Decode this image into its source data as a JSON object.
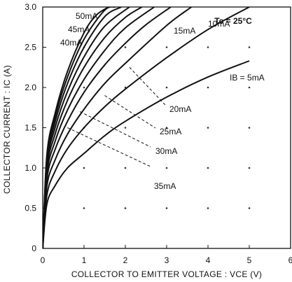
{
  "chart_data": {
    "type": "line",
    "xlabel": "COLLECTOR TO EMITTER VOLTAGE : VCE (V)",
    "ylabel": "COLLECTOR CURRENT : IC (A)",
    "xlim": [
      0,
      6
    ],
    "ylim": [
      0,
      3.0
    ],
    "xticks": [
      "0",
      "1",
      "2",
      "3",
      "4",
      "5",
      "6"
    ],
    "yticks": [
      "0",
      "0.5",
      "1.0",
      "1.5",
      "2.0",
      "2.5",
      "3.0"
    ],
    "annotation": "Tc = 25°C",
    "series": [
      {
        "name": "IB = 5mA",
        "x": [
          0,
          0.1,
          0.3,
          0.6,
          1.0,
          1.5,
          2.0,
          3.0,
          4.0,
          5.0
        ],
        "y": [
          0,
          0.55,
          0.78,
          1.0,
          1.18,
          1.4,
          1.58,
          1.88,
          2.13,
          2.33
        ]
      },
      {
        "name": "10mA",
        "x": [
          0,
          0.1,
          0.3,
          0.6,
          1.0,
          1.5,
          2.0,
          3.0,
          4.0,
          5.0
        ],
        "y": [
          0,
          0.66,
          0.96,
          1.24,
          1.5,
          1.76,
          1.98,
          2.37,
          2.72,
          3.0
        ]
      },
      {
        "name": "15mA",
        "x": [
          0,
          0.1,
          0.3,
          0.6,
          1.0,
          1.5,
          2.0,
          3.0,
          3.6
        ],
        "y": [
          0,
          0.77,
          1.1,
          1.42,
          1.73,
          2.05,
          2.3,
          2.77,
          3.0
        ]
      },
      {
        "name": "20mA",
        "x": [
          0,
          0.1,
          0.3,
          0.6,
          1.0,
          1.5,
          2.0,
          2.5,
          3.1
        ],
        "y": [
          0,
          0.86,
          1.23,
          1.58,
          1.94,
          2.28,
          2.55,
          2.78,
          3.0
        ]
      },
      {
        "name": "25mA",
        "x": [
          0,
          0.1,
          0.3,
          0.6,
          1.0,
          1.5,
          2.0,
          2.7
        ],
        "y": [
          0,
          0.93,
          1.33,
          1.72,
          2.1,
          2.46,
          2.74,
          3.0
        ]
      },
      {
        "name": "30mA",
        "x": [
          0,
          0.1,
          0.3,
          0.6,
          1.0,
          1.5,
          2.0,
          2.4
        ],
        "y": [
          0,
          0.99,
          1.42,
          1.84,
          2.25,
          2.62,
          2.87,
          3.0
        ]
      },
      {
        "name": "35mA",
        "x": [
          0,
          0.1,
          0.3,
          0.6,
          1.0,
          1.5,
          2.1
        ],
        "y": [
          0,
          1.04,
          1.5,
          1.95,
          2.38,
          2.76,
          3.0
        ]
      },
      {
        "name": "40mA",
        "x": [
          0,
          0.1,
          0.3,
          0.6,
          1.0,
          1.5,
          1.9
        ],
        "y": [
          0,
          1.08,
          1.57,
          2.05,
          2.5,
          2.88,
          3.0
        ]
      },
      {
        "name": "45mA",
        "x": [
          0,
          0.1,
          0.3,
          0.6,
          1.0,
          1.5,
          1.75
        ],
        "y": [
          0,
          1.12,
          1.63,
          2.13,
          2.6,
          2.96,
          3.0
        ]
      },
      {
        "name": "50mA",
        "x": [
          0,
          0.1,
          0.3,
          0.6,
          1.0,
          1.3,
          1.6
        ],
        "y": [
          0,
          1.16,
          1.68,
          2.2,
          2.68,
          2.9,
          3.0
        ]
      }
    ],
    "curve_labels": {
      "5mA": "IB = 5mA",
      "10mA": "10mA",
      "15mA": "15mA",
      "20mA": "20mA",
      "25mA": "25mA",
      "30mA": "30mA",
      "35mA": "35mA",
      "40mA": "40mA",
      "45mA": "45mA",
      "50mA": "50mA"
    },
    "grid": "dots",
    "legend": "inline labels on curves"
  }
}
